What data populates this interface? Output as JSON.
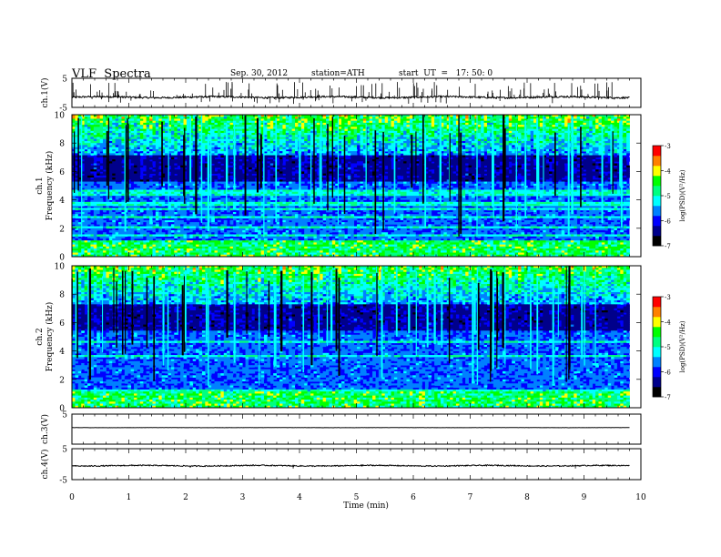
{
  "header": {
    "title": "VLF  Spectra",
    "date": "Sep. 30, 2012",
    "station": "station=ATH",
    "start": "start  UT  =   17: 50: 0"
  },
  "chart_data": [
    {
      "type": "line",
      "ylabel": "ch.1(V)",
      "ylim": [
        -5,
        5
      ],
      "yticks": [
        "5",
        "-5"
      ],
      "xlim": [
        0,
        10
      ],
      "grid": false,
      "baseline": -1.5,
      "noise": 0.6,
      "spikes": 160,
      "spike_range": [
        -3.8,
        4.0
      ]
    },
    {
      "type": "heatmap",
      "ylabel_top": "ch.1",
      "ylabel": "Frequency  (kHz)",
      "ylim": [
        0,
        10
      ],
      "yticks": [
        "0",
        "2",
        "4",
        "6",
        "8",
        "10"
      ],
      "xlim": [
        0,
        10
      ],
      "colorbar": {
        "label": "log(PSD)(V²/Hz)",
        "range": [
          -7,
          -3
        ],
        "ticks": [
          "-7",
          "-6",
          "-5",
          "-4",
          "-3"
        ]
      },
      "dark_band_khz": [
        5.3,
        7.2
      ],
      "active_band_khz": [
        7.2,
        10
      ]
    },
    {
      "type": "heatmap",
      "ylabel_top": "ch.2",
      "ylabel": "Frequency  (kHz)",
      "ylim": [
        0,
        10
      ],
      "yticks": [
        "0",
        "2",
        "4",
        "6",
        "8",
        "10"
      ],
      "xlim": [
        0,
        10
      ],
      "colorbar": {
        "label": "log(PSD)(V²/Hz)",
        "range": [
          -7,
          -3
        ],
        "ticks": [
          "-7",
          "-6",
          "-5",
          "-4",
          "-3"
        ]
      },
      "dark_band_khz": [
        5.5,
        7.3
      ],
      "active_band_khz": [
        7.3,
        10
      ]
    },
    {
      "type": "line",
      "ylabel": "ch.3(V)",
      "ylim": [
        -5,
        5
      ],
      "yticks": [
        "5"
      ],
      "xlim": [
        0,
        10
      ],
      "grid": false,
      "baseline": 0.5,
      "noise": 0.05,
      "spikes": 0,
      "spike_range": [
        0,
        0
      ]
    },
    {
      "type": "line",
      "ylabel": "ch.4(V)",
      "ylim": [
        -5,
        5
      ],
      "yticks": [
        "5",
        "-5"
      ],
      "xlim": [
        0,
        10
      ],
      "grid": false,
      "baseline": -0.5,
      "noise": 0.35,
      "spikes": 3,
      "spike_range": [
        -1.5,
        0.5
      ]
    }
  ],
  "xaxis": {
    "label": "Time  (min)",
    "ticks": [
      "0",
      "1",
      "2",
      "3",
      "4",
      "5",
      "6",
      "7",
      "8",
      "9",
      "10"
    ],
    "range": [
      0,
      10
    ],
    "data_end": 9.8
  },
  "colors": {
    "scale": [
      "#000000",
      "#00008b",
      "#0000ff",
      "#0080ff",
      "#00ffff",
      "#00ff80",
      "#00ff00",
      "#ffff00",
      "#ff8000",
      "#ff0000",
      "#ffffff"
    ],
    "trace": "#000000"
  }
}
